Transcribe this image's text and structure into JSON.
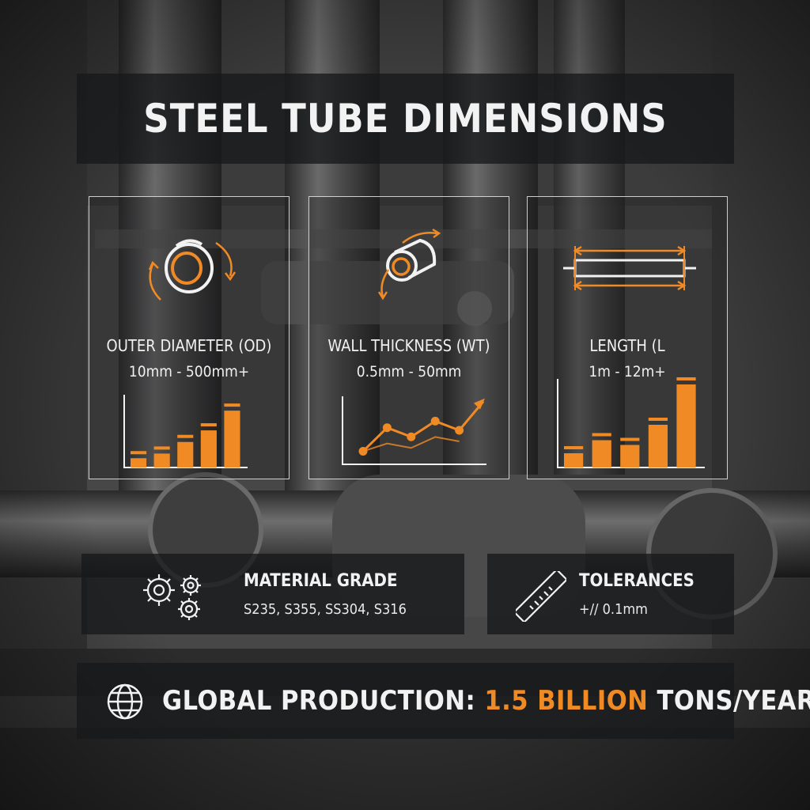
{
  "title": "STEEL TUBE DIMENSIONS",
  "cards": [
    {
      "label": "OUTER DIAMETER (OD)",
      "value": "10mm - 500mm+",
      "icon": "tube-rotation-icon",
      "chart": {
        "type": "bar",
        "values": [
          0.8,
          1.2,
          2.2,
          3.2,
          4.9
        ]
      }
    },
    {
      "label": "WALL THICKNESS (WT)",
      "value": "0.5mm - 50mm",
      "icon": "tube-angled-icon",
      "chart": {
        "type": "line",
        "values": [
          1.0,
          2.8,
          2.1,
          3.3,
          2.6,
          4.8
        ]
      }
    },
    {
      "label": "LENGTH (L",
      "value": "1m - 12m+",
      "icon": "length-measure-icon",
      "chart": {
        "type": "bar",
        "values": [
          1.2,
          2.3,
          1.9,
          3.6,
          7.0
        ]
      }
    }
  ],
  "material": {
    "heading": "MATERIAL GRADE",
    "value": "S235, S355, SS304, S316",
    "icon": "gears-icon"
  },
  "tolerances": {
    "heading": "TOLERANCES",
    "value": "+// 0.1mm",
    "icon": "ruler-icon"
  },
  "production": {
    "prefix": "GLOBAL PRODUCTION:",
    "highlight": "1.5 BILLION",
    "suffix": "TONS/YEAR",
    "icon": "globe-icon"
  },
  "colors": {
    "accent": "#f08a24",
    "panel": "#16181a",
    "text": "#f2f2f2"
  }
}
